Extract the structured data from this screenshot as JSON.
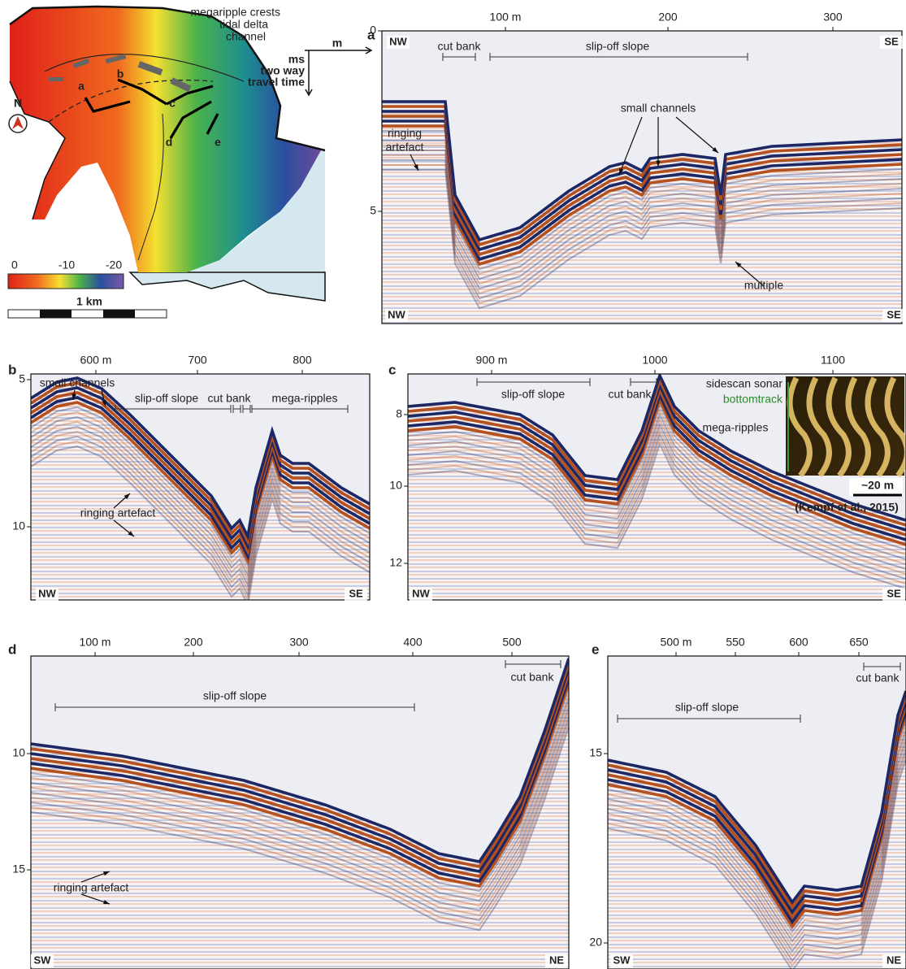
{
  "map": {
    "legend": [
      "megaripple crests",
      "tidal delta",
      "channel"
    ],
    "profiles": [
      "a",
      "b",
      "c",
      "d",
      "e"
    ],
    "north": "N",
    "colorbar": [
      0,
      -10,
      -20
    ],
    "scale": "1 km",
    "axis_key": {
      "x_unit": "m",
      "y_unit": "ms",
      "y_note": [
        "two way",
        "travel time"
      ]
    }
  },
  "panels": [
    {
      "label": "a",
      "x_ticks": [
        "100 m",
        200,
        300
      ],
      "y_ticks": [
        0,
        5
      ],
      "directions": [
        "NW",
        "SE",
        "NW",
        "SE"
      ],
      "annotations": [
        "cut bank",
        "slip-off slope",
        "small channels",
        [
          "ringing",
          "artefact"
        ],
        "multiple"
      ]
    },
    {
      "label": "b",
      "x_ticks": [
        "600 m",
        700,
        800
      ],
      "y_ticks": [
        5,
        10
      ],
      "directions": [
        "NW",
        "SE"
      ],
      "annotations": [
        "small channels",
        "slip-off slope",
        "cut bank",
        "mega-ripples",
        "ringing artefact"
      ]
    },
    {
      "label": "c",
      "x_ticks": [
        "900 m",
        1000,
        1100
      ],
      "y_ticks": [
        8,
        10,
        12
      ],
      "directions": [
        "NW",
        "SE"
      ],
      "annotations": [
        "slip-off slope",
        "cut bank",
        "sidescan sonar",
        "bottomtrack",
        "mega-ripples",
        "~20 m",
        "(Kempf et al., 2015)"
      ]
    },
    {
      "label": "d",
      "x_ticks": [
        "100 m",
        200,
        300,
        400,
        500
      ],
      "y_ticks": [
        10,
        15
      ],
      "directions": [
        "SW",
        "NE"
      ],
      "annotations": [
        "cut bank",
        "slip-off slope",
        "ringing artefact"
      ]
    },
    {
      "label": "e",
      "x_ticks": [
        "500 m",
        550,
        600,
        650
      ],
      "y_ticks": [
        15,
        20
      ],
      "directions": [
        "SW",
        "NE"
      ],
      "annotations": [
        "slip-off slope",
        "cut bank"
      ]
    }
  ]
}
